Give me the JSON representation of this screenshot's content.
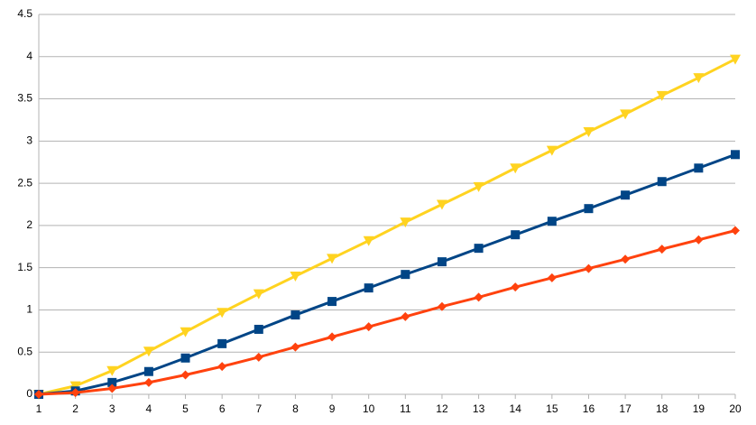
{
  "chart_data": {
    "type": "line",
    "x": [
      1,
      2,
      3,
      4,
      5,
      6,
      7,
      8,
      9,
      10,
      11,
      12,
      13,
      14,
      15,
      16,
      17,
      18,
      19,
      20
    ],
    "xlim": [
      1,
      20
    ],
    "xticks": [
      1,
      2,
      3,
      4,
      5,
      6,
      7,
      8,
      9,
      10,
      11,
      12,
      13,
      14,
      15,
      16,
      17,
      18,
      19,
      20
    ],
    "ylim": [
      0,
      4.5
    ],
    "yticks": [
      0,
      0.5,
      1,
      1.5,
      2,
      2.5,
      3,
      3.5,
      4,
      4.5
    ],
    "grid": true,
    "series": [
      {
        "color": "#ffd320",
        "marker": "triangle-down",
        "values": [
          0,
          0.1,
          0.28,
          0.51,
          0.74,
          0.97,
          1.19,
          1.4,
          1.61,
          1.82,
          2.04,
          2.25,
          2.46,
          2.68,
          2.89,
          3.11,
          3.32,
          3.54,
          3.75,
          3.97
        ]
      },
      {
        "color": "#004586",
        "marker": "square",
        "values": [
          0,
          0.04,
          0.14,
          0.27,
          0.43,
          0.6,
          0.77,
          0.94,
          1.1,
          1.26,
          1.42,
          1.57,
          1.73,
          1.89,
          2.05,
          2.2,
          2.36,
          2.52,
          2.68,
          2.84
        ]
      },
      {
        "color": "#ff420e",
        "marker": "diamond",
        "values": [
          0,
          0.02,
          0.07,
          0.14,
          0.23,
          0.33,
          0.44,
          0.56,
          0.68,
          0.8,
          0.92,
          1.04,
          1.15,
          1.27,
          1.38,
          1.49,
          1.6,
          1.72,
          1.83,
          1.94
        ]
      }
    ]
  }
}
